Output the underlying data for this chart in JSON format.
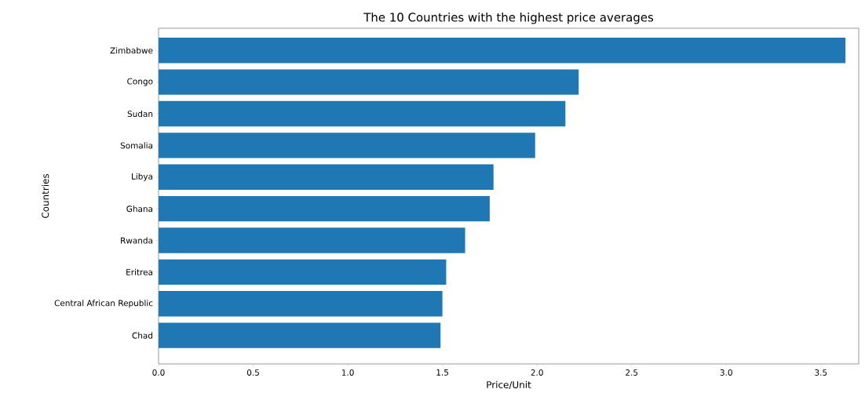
{
  "chart_data": {
    "type": "bar",
    "orientation": "horizontal",
    "title": "The 10 Countries with the highest price averages",
    "xlabel": "Price/Unit",
    "ylabel": "Countries",
    "categories": [
      "Zimbabwe",
      "Congo",
      "Sudan",
      "Somalia",
      "Libya",
      "Ghana",
      "Rwanda",
      "Eritrea",
      "Central African Republic",
      "Chad"
    ],
    "values": [
      3.63,
      2.22,
      2.15,
      1.99,
      1.77,
      1.75,
      1.62,
      1.52,
      1.5,
      1.49
    ],
    "color": "#1f77b4",
    "xlim": [
      0,
      3.7
    ],
    "xticks": [
      {
        "value": 0,
        "label": "0.0"
      },
      0.5,
      {
        "value": 1,
        "label": "1.0"
      },
      1.5,
      {
        "value": 2,
        "label": "2.0"
      },
      2.5,
      {
        "value": 3,
        "label": "3.0"
      },
      3.5
    ]
  }
}
